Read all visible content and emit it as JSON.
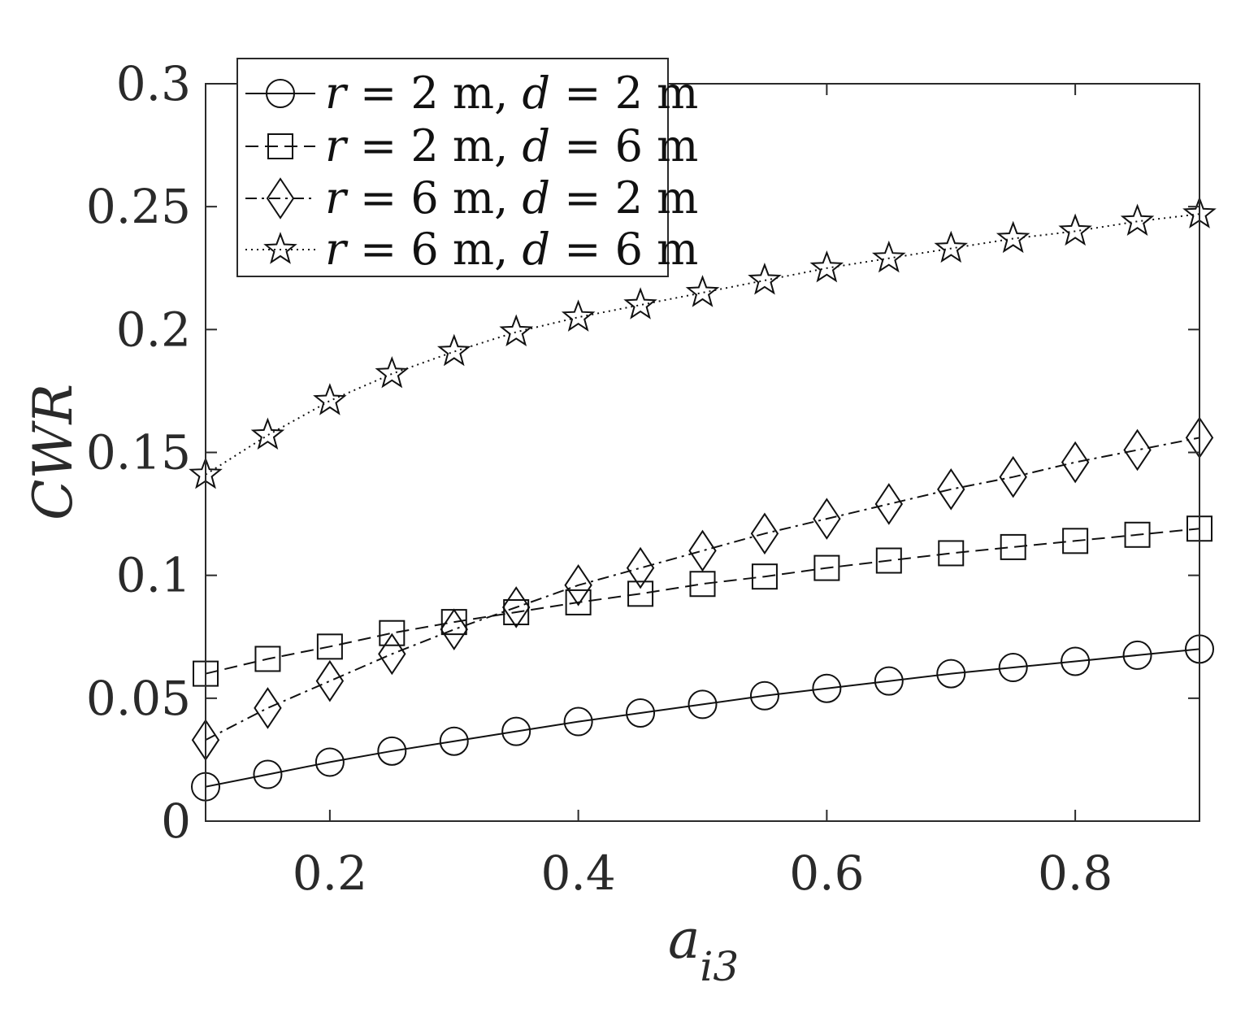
{
  "chart_data": {
    "type": "line",
    "title": "",
    "xlabel": "a",
    "xlabel_sub": "i3",
    "ylabel": "CWR",
    "xlim": [
      0.1,
      0.9
    ],
    "ylim": [
      0,
      0.3
    ],
    "xticks": [
      0.2,
      0.4,
      0.6,
      0.8
    ],
    "xtick_labels": [
      "0.2",
      "0.4",
      "0.6",
      "0.8"
    ],
    "yticks": [
      0,
      0.05,
      0.1,
      0.15,
      0.2,
      0.25,
      0.3
    ],
    "ytick_labels": [
      "0",
      "0.05",
      "0.1",
      "0.15",
      "0.2",
      "0.25",
      "0.3"
    ],
    "grid": false,
    "legend_position": "top-left",
    "x": [
      0.1,
      0.15,
      0.2,
      0.25,
      0.3,
      0.35,
      0.4,
      0.45,
      0.5,
      0.55,
      0.6,
      0.65,
      0.7,
      0.75,
      0.8,
      0.85,
      0.9
    ],
    "series": [
      {
        "name": "r = 2 m, d = 2 m",
        "name_parts": {
          "v1": "r",
          "t1": " = 2 m, ",
          "v2": "d",
          "t2": " = 2 m"
        },
        "marker": "circle",
        "line_style": "solid",
        "values": [
          0.014,
          0.019,
          0.024,
          0.0285,
          0.0325,
          0.0365,
          0.0405,
          0.044,
          0.0475,
          0.051,
          0.054,
          0.057,
          0.06,
          0.0625,
          0.065,
          0.0675,
          0.07
        ]
      },
      {
        "name": "r = 2 m, d = 6 m",
        "name_parts": {
          "v1": "r",
          "t1": " = 2 m, ",
          "v2": "d",
          "t2": " = 6 m"
        },
        "marker": "square",
        "line_style": "dashed",
        "values": [
          0.06,
          0.066,
          0.071,
          0.0765,
          0.081,
          0.085,
          0.089,
          0.0925,
          0.0965,
          0.0995,
          0.103,
          0.106,
          0.109,
          0.1115,
          0.114,
          0.1165,
          0.119
        ]
      },
      {
        "name": "r = 6 m, d = 2 m",
        "name_parts": {
          "v1": "r",
          "t1": " = 6 m, ",
          "v2": "d",
          "t2": " = 2 m"
        },
        "marker": "diamond",
        "line_style": "dash-dot",
        "values": [
          0.033,
          0.046,
          0.057,
          0.068,
          0.078,
          0.087,
          0.096,
          0.103,
          0.11,
          0.117,
          0.123,
          0.129,
          0.135,
          0.14,
          0.146,
          0.151,
          0.156
        ]
      },
      {
        "name": "r = 6 m, d = 6 m",
        "name_parts": {
          "v1": "r",
          "t1": " = 6 m, ",
          "v2": "d",
          "t2": " = 6 m"
        },
        "marker": "star",
        "line_style": "dotted",
        "values": [
          0.141,
          0.157,
          0.171,
          0.182,
          0.191,
          0.199,
          0.205,
          0.21,
          0.215,
          0.22,
          0.225,
          0.229,
          0.233,
          0.237,
          0.24,
          0.244,
          0.247
        ]
      }
    ]
  }
}
